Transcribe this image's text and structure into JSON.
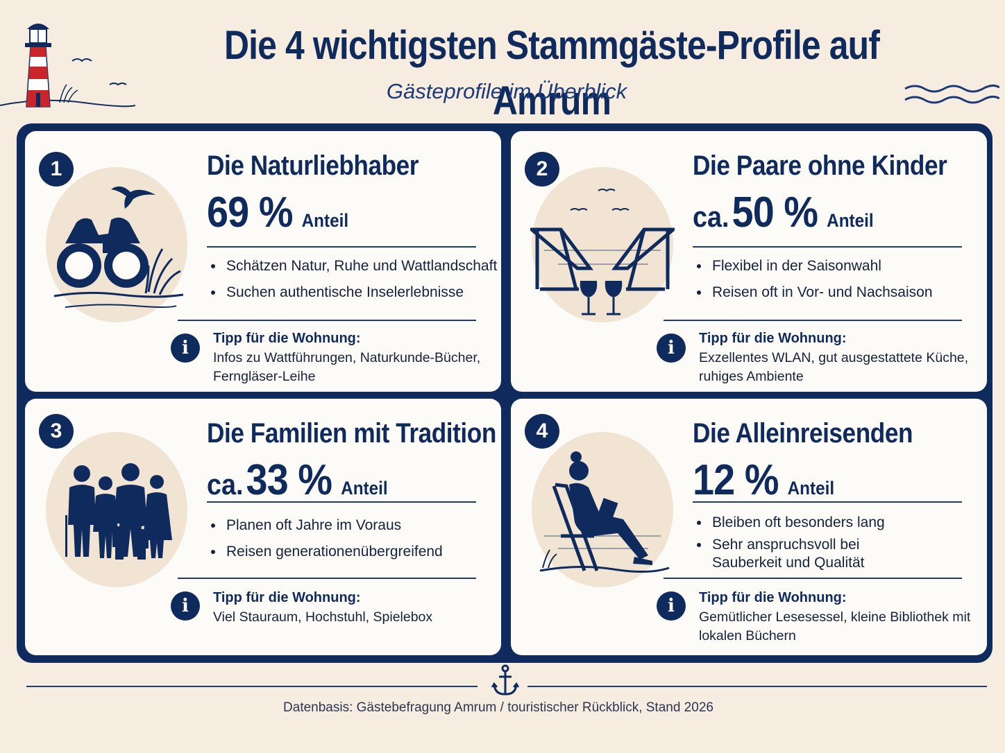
{
  "header": {
    "title": "Die 4 wichtigsten Stammgäste-Profile auf Amrum",
    "subtitle": "Gästeprofile im Überblick"
  },
  "cards": [
    {
      "number": "1",
      "title": "Die Naturliebhaber",
      "stat_prefix": "",
      "stat_value": "69 %",
      "stat_label": "Anteil",
      "bullets": [
        "Schätzen Natur, Ruhe und Wattlandschaft",
        "Suchen authentische Inselerlebnisse"
      ],
      "tip_heading": "Tipp für die Wohnung:",
      "tip_text": "Infos zu Wattführungen, Naturkunde-Bücher, Ferngläser-Leihe",
      "icon": "binoculars-bird-icon"
    },
    {
      "number": "2",
      "title": "Die Paare ohne Kinder",
      "stat_prefix": "ca.",
      "stat_value": "50 %",
      "stat_label": "Anteil",
      "bullets": [
        "Flexibel in der Saisonwahl",
        "Reisen oft in Vor- und Nachsaison"
      ],
      "tip_heading": "Tipp für die Wohnung:",
      "tip_text": "Exzellentes WLAN, gut ausgestattete Küche, ruhiges Ambiente",
      "icon": "deck-chairs-wine-icon"
    },
    {
      "number": "3",
      "title": "Die Familien mit Tradition",
      "stat_prefix": "ca.",
      "stat_value": "33 %",
      "stat_label": "Anteil",
      "bullets": [
        "Planen oft Jahre im Voraus",
        "Reisen generationenübergreifend"
      ],
      "tip_heading": "Tipp für die Wohnung:",
      "tip_text": "Viel Stauraum, Hochstuhl, Spielebox",
      "icon": "family-icon"
    },
    {
      "number": "4",
      "title": "Die Alleinreisenden",
      "stat_prefix": "",
      "stat_value": "12 %",
      "stat_label": "Anteil",
      "bullets": [
        "Bleiben oft besonders lang",
        "Sehr anspruchsvoll bei Sauberkeit und Qualität"
      ],
      "tip_heading": "Tipp für die Wohnung:",
      "tip_text": "Gemütlicher Lesesessel, kleine Bibliothek mit lokalen Büchern",
      "icon": "reading-woman-icon"
    }
  ],
  "footer": {
    "source": "Datenbasis: Gästebefragung Amrum / touristischer Rückblick, Stand 2026"
  },
  "colors": {
    "navy": "#0f2a5c",
    "background": "#f6ece0",
    "card": "#fdfbf8",
    "circle": "#f1e4d2",
    "lighthouse_red": "#c8262b"
  }
}
